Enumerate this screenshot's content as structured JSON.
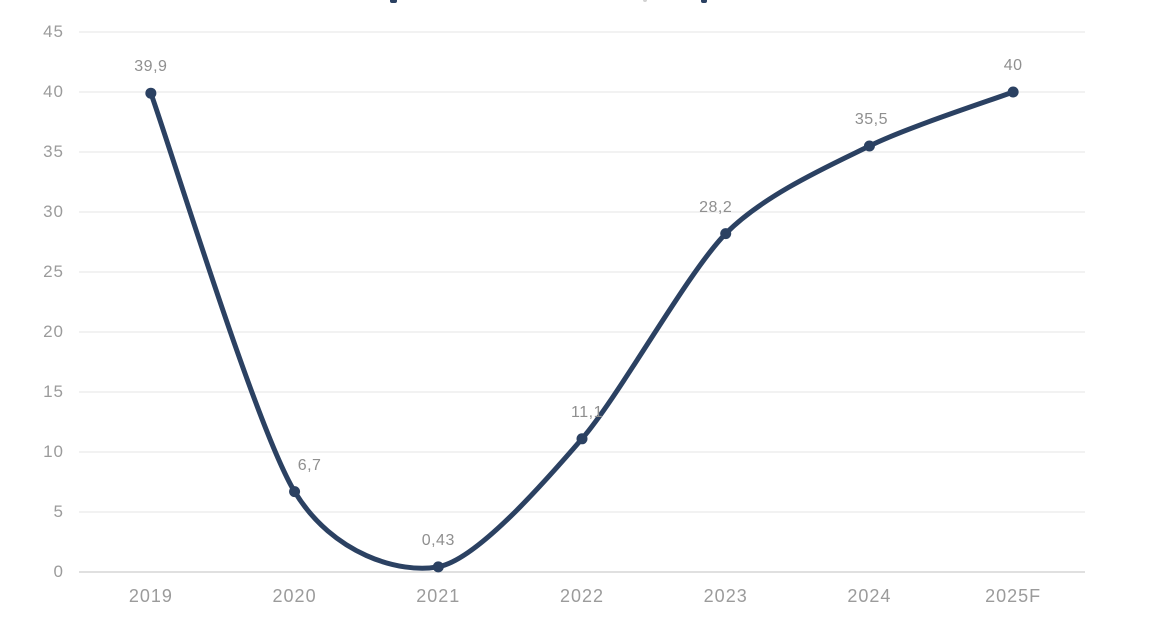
{
  "chart_data": {
    "type": "line",
    "title": "",
    "categories": [
      "2019",
      "2020",
      "2021",
      "2022",
      "2023",
      "2024",
      "2025F"
    ],
    "values": [
      39.9,
      6.7,
      0.43,
      11.1,
      28.2,
      35.5,
      40
    ],
    "point_labels": [
      "39,9",
      "6,7",
      "0,43",
      "11,1",
      "28,2",
      "35,5",
      "40"
    ],
    "y_ticks": [
      0,
      5,
      10,
      15,
      20,
      25,
      30,
      35,
      40,
      45
    ],
    "ylim": [
      0,
      45
    ],
    "xlabel": "",
    "ylabel": "",
    "grid": true,
    "legend_position": "none",
    "colors": {
      "line": "#2b4162",
      "marker": "#2b4162",
      "gridline": "#f2f2f2",
      "axis_line": "#e0e0e0",
      "tick_label": "#9b9b9b",
      "data_label": "#8f8f8f",
      "background": "#ffffff"
    }
  }
}
